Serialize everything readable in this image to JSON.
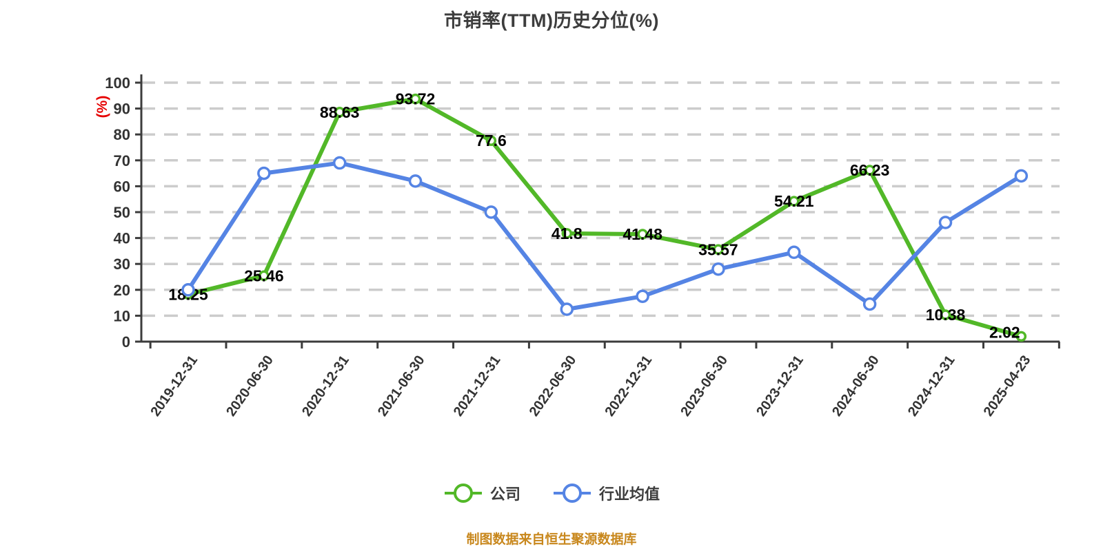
{
  "title": "市销率(TTM)历史分位(%)",
  "footer": "制图数据来自恒生聚源数据库",
  "colors": {
    "company": "#52b828",
    "industry": "#5584e4",
    "axis": "#3c3c3c",
    "grid": "#cccccc",
    "tick_label": "#333333",
    "value_label": "#000000",
    "y_unit_label": "#e60000",
    "title": "#3d3d3d",
    "footer": "#c8871c",
    "marker_fill": "#ffffff",
    "background": "#ffffff"
  },
  "chart_data": {
    "type": "line",
    "title": "市销率(TTM)历史分位(%)",
    "ylabel": "(%)",
    "xlabel": "",
    "ylim": [
      0,
      100
    ],
    "ytick_step": 10,
    "grid": "dashed-horizontal",
    "legend_position": "bottom",
    "categories": [
      "2019-12-31",
      "2020-06-30",
      "2020-12-31",
      "2021-06-30",
      "2021-12-31",
      "2022-06-30",
      "2022-12-31",
      "2023-06-30",
      "2023-12-31",
      "2024-06-30",
      "2024-12-31",
      "2025-04-23"
    ],
    "series": [
      {
        "name": "公司",
        "color_key": "company",
        "show_value_labels": true,
        "marker_radius": 6,
        "values": [
          18.25,
          25.46,
          88.63,
          93.72,
          77.6,
          41.8,
          41.48,
          35.57,
          54.21,
          66.23,
          10.38,
          2.02
        ],
        "value_labels": [
          "18.25",
          "25.46",
          "88.63",
          "93.72",
          "77.6",
          "41.8",
          "41.48",
          "35.57",
          "54.21",
          "66.23",
          "10.38",
          "2.02"
        ]
      },
      {
        "name": "行业均值",
        "color_key": "industry",
        "show_value_labels": false,
        "marker_radius": 8,
        "values": [
          20,
          65,
          69,
          62,
          50,
          12.5,
          17.5,
          28,
          34.5,
          14.5,
          46,
          64
        ],
        "value_labels": []
      }
    ]
  }
}
